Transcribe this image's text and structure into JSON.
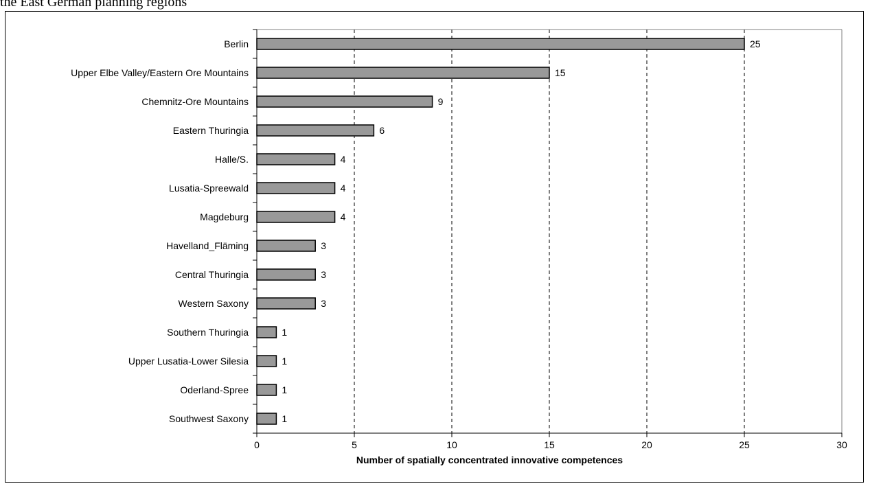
{
  "caption": "the East German planning regions",
  "chart_data": {
    "type": "bar",
    "orientation": "horizontal",
    "categories": [
      "Berlin",
      "Upper Elbe Valley/Eastern Ore Mountains",
      "Chemnitz-Ore Mountains",
      "Eastern Thuringia",
      "Halle/S.",
      "Lusatia-Spreewald",
      "Magdeburg",
      "Havelland_Fläming",
      "Central Thuringia",
      "Western Saxony",
      "Southern Thuringia",
      "Upper Lusatia-Lower Silesia",
      "Oderland-Spree",
      "Southwest Saxony"
    ],
    "values": [
      25,
      15,
      9,
      6,
      4,
      4,
      4,
      3,
      3,
      3,
      1,
      1,
      1,
      1
    ],
    "data_labels": [
      "25",
      "15",
      "9",
      "6",
      "4",
      "4",
      "4",
      "3",
      "3",
      "3",
      "1",
      "1",
      "1",
      "1"
    ],
    "xlabel": "Number of spatially concentrated innovative competences",
    "ylabel": "",
    "xlim": [
      0,
      30
    ],
    "xticks": [
      0,
      5,
      10,
      15,
      20,
      25,
      30
    ],
    "xtick_labels": [
      "0",
      "5",
      "10",
      "15",
      "20",
      "25",
      "30"
    ],
    "grid": "vertical dashed",
    "legend": "none",
    "colors": {
      "bar_fill": "#999999",
      "bar_stroke": "#000000",
      "grid": "#000000"
    }
  }
}
